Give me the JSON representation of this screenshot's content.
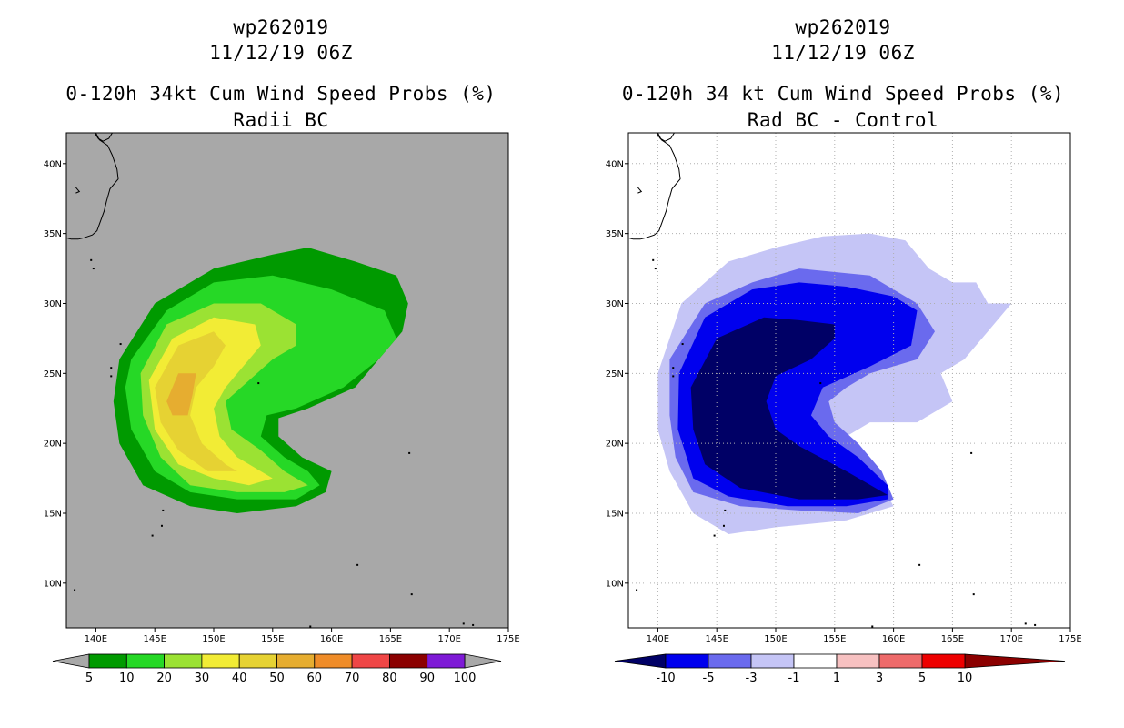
{
  "left_panel": {
    "storm_id": "wp262019",
    "datetime": "11/12/19 06Z",
    "title": "0-120h 34kt Cum Wind Speed Probs (%)",
    "subtitle": "Radii BC",
    "colorbar": {
      "labels": [
        "5",
        "10",
        "20",
        "30",
        "40",
        "50",
        "60",
        "70",
        "80",
        "90",
        "100"
      ],
      "colors": [
        "#009a00",
        "#26d826",
        "#9be233",
        "#f2ec35",
        "#e6d233",
        "#e6ad30",
        "#ef8c28",
        "#ef4646",
        "#8b0000",
        "#7e1ad6"
      ]
    }
  },
  "right_panel": {
    "storm_id": "wp262019",
    "datetime": "11/12/19 06Z",
    "title": "0-120h 34 kt Cum Wind Speed Probs (%)",
    "subtitle": "Rad BC - Control",
    "colorbar": {
      "labels": [
        "-10",
        "-5",
        "-3",
        "-1",
        "1",
        "3",
        "5",
        "10"
      ],
      "colors": [
        "#000066",
        "#0000ee",
        "#6a6aee",
        "#c5c5f6",
        "#ffffff",
        "#f7c1c1",
        "#ee6a6a",
        "#ee0000",
        "#8b0000"
      ]
    }
  },
  "chart_data": [
    {
      "type": "heatmap",
      "title": "0-120h 34kt Cum Wind Speed Probs (%) - Radii BC",
      "x_ticks": [
        "140E",
        "145E",
        "150E",
        "155E",
        "160E",
        "165E",
        "170E",
        "175E"
      ],
      "y_ticks": [
        "10N",
        "15N",
        "20N",
        "25N",
        "30N",
        "35N",
        "40N"
      ],
      "xlim": [
        137.5,
        175
      ],
      "ylim": [
        6.8,
        42.2
      ],
      "levels": [
        5,
        10,
        20,
        30,
        40,
        50,
        60,
        70,
        80,
        90,
        100
      ],
      "contours": [
        {
          "level": 5,
          "color": "#009a00",
          "points": [
            [
              142,
              26
            ],
            [
              145,
              30
            ],
            [
              150,
              32.5
            ],
            [
              155,
              33.5
            ],
            [
              158,
              34
            ],
            [
              162,
              33
            ],
            [
              165.5,
              32
            ],
            [
              166.5,
              30
            ],
            [
              166,
              28
            ],
            [
              164,
              26
            ],
            [
              162,
              24
            ],
            [
              158,
              22.5
            ],
            [
              155.5,
              21.8
            ],
            [
              155.5,
              20.5
            ],
            [
              157.5,
              19
            ],
            [
              160,
              18
            ],
            [
              159.5,
              16.5
            ],
            [
              157,
              15.5
            ],
            [
              152,
              15
            ],
            [
              148,
              15.5
            ],
            [
              144,
              17
            ],
            [
              142,
              20
            ],
            [
              141.5,
              23
            ],
            [
              142,
              26
            ]
          ]
        },
        {
          "level": 10,
          "color": "#26d826",
          "points": [
            [
              143,
              26
            ],
            [
              146,
              29.5
            ],
            [
              150,
              31.5
            ],
            [
              155,
              32
            ],
            [
              160,
              31
            ],
            [
              164.5,
              29.5
            ],
            [
              165.5,
              27.5
            ],
            [
              164,
              26
            ],
            [
              161,
              24
            ],
            [
              157,
              22.5
            ],
            [
              154.5,
              22
            ],
            [
              154,
              20.5
            ],
            [
              156,
              19
            ],
            [
              158,
              18
            ],
            [
              159,
              17
            ],
            [
              157,
              16
            ],
            [
              152,
              16
            ],
            [
              148,
              16.5
            ],
            [
              145,
              18
            ],
            [
              143,
              21
            ],
            [
              142.5,
              24
            ],
            [
              143,
              26
            ]
          ]
        },
        {
          "level": 20,
          "color": "#9be233",
          "points": [
            [
              143.8,
              25
            ],
            [
              146,
              28.5
            ],
            [
              150,
              30
            ],
            [
              154,
              30
            ],
            [
              157,
              28.5
            ],
            [
              157,
              27
            ],
            [
              155,
              26
            ],
            [
              153,
              24.5
            ],
            [
              151,
              23
            ],
            [
              151.5,
              21
            ],
            [
              154,
              19.5
            ],
            [
              156,
              18
            ],
            [
              158,
              17
            ],
            [
              156,
              16.5
            ],
            [
              152,
              16.5
            ],
            [
              148,
              17
            ],
            [
              145.5,
              19
            ],
            [
              144,
              22
            ],
            [
              143.8,
              25
            ]
          ]
        },
        {
          "level": 30,
          "color": "#f2ec35",
          "points": [
            [
              144.5,
              24.5
            ],
            [
              146.5,
              27.5
            ],
            [
              150,
              29
            ],
            [
              153.5,
              28.5
            ],
            [
              154,
              27
            ],
            [
              152.5,
              25.5
            ],
            [
              151,
              24
            ],
            [
              150,
              22.5
            ],
            [
              150.5,
              20.5
            ],
            [
              152,
              19
            ],
            [
              155,
              17.5
            ],
            [
              153,
              17
            ],
            [
              150,
              17.5
            ],
            [
              147,
              18.5
            ],
            [
              145,
              21
            ],
            [
              144.5,
              24.5
            ]
          ]
        },
        {
          "level": 40,
          "color": "#e6d233",
          "points": [
            [
              145,
              24
            ],
            [
              147,
              27
            ],
            [
              150,
              28
            ],
            [
              151,
              27
            ],
            [
              150,
              25.5
            ],
            [
              148.5,
              24
            ],
            [
              148,
              22
            ],
            [
              149,
              20
            ],
            [
              151,
              18.5
            ],
            [
              152,
              18
            ],
            [
              149.5,
              18
            ],
            [
              147,
              19.5
            ],
            [
              145.5,
              21.5
            ],
            [
              145,
              24
            ]
          ]
        },
        {
          "level": 50,
          "color": "#e6ad30",
          "points": [
            [
              146,
              23
            ],
            [
              147,
              25
            ],
            [
              148.5,
              25
            ],
            [
              148.2,
              23.5
            ],
            [
              147.8,
              22
            ],
            [
              146.5,
              22
            ],
            [
              146,
              23
            ]
          ]
        }
      ]
    },
    {
      "type": "heatmap",
      "title": "0-120h 34 kt Cum Wind Speed Probs (%) - Rad BC - Control",
      "x_ticks": [
        "140E",
        "145E",
        "150E",
        "155E",
        "160E",
        "165E",
        "170E",
        "175E"
      ],
      "y_ticks": [
        "10N",
        "15N",
        "20N",
        "25N",
        "30N",
        "35N",
        "40N"
      ],
      "xlim": [
        137.5,
        175
      ],
      "ylim": [
        6.8,
        42.2
      ],
      "levels": [
        -10,
        -5,
        -3,
        -1,
        1,
        3,
        5,
        10
      ],
      "contours": [
        {
          "level": -1,
          "color": "#c5c5f6",
          "points": [
            [
              140,
              25
            ],
            [
              142,
              30
            ],
            [
              146,
              33
            ],
            [
              150,
              34
            ],
            [
              154,
              34.8
            ],
            [
              158,
              35
            ],
            [
              161,
              34.5
            ],
            [
              163,
              32.5
            ],
            [
              165,
              31.5
            ],
            [
              167,
              31.5
            ],
            [
              168,
              30
            ],
            [
              170,
              30
            ],
            [
              168,
              28
            ],
            [
              166,
              26
            ],
            [
              164,
              25
            ],
            [
              165,
              23
            ],
            [
              162,
              21.5
            ],
            [
              158,
              21.5
            ],
            [
              156,
              20.5
            ],
            [
              157,
              19
            ],
            [
              159,
              17
            ],
            [
              160,
              15.5
            ],
            [
              156,
              14.5
            ],
            [
              150,
              14
            ],
            [
              146,
              13.5
            ],
            [
              143,
              15
            ],
            [
              141,
              18
            ],
            [
              140,
              21
            ],
            [
              140,
              25
            ]
          ]
        },
        {
          "level": -3,
          "color": "#6a6aee",
          "points": [
            [
              141,
              26
            ],
            [
              144,
              30
            ],
            [
              148,
              31.5
            ],
            [
              152,
              32.5
            ],
            [
              158,
              32
            ],
            [
              162,
              30
            ],
            [
              163.5,
              28
            ],
            [
              162,
              26
            ],
            [
              158,
              25
            ],
            [
              156,
              24
            ],
            [
              154.5,
              23
            ],
            [
              155,
              21.5
            ],
            [
              157,
              20
            ],
            [
              159,
              18
            ],
            [
              160,
              16
            ],
            [
              157,
              15
            ],
            [
              152,
              15.2
            ],
            [
              147,
              15.5
            ],
            [
              143,
              16.5
            ],
            [
              141.5,
              19
            ],
            [
              141,
              22
            ],
            [
              141,
              26
            ]
          ]
        },
        {
          "level": -5,
          "color": "#0000ee",
          "points": [
            [
              141.8,
              25
            ],
            [
              144,
              29
            ],
            [
              148,
              31
            ],
            [
              152,
              31.5
            ],
            [
              156,
              31.2
            ],
            [
              160,
              30.5
            ],
            [
              162,
              29.5
            ],
            [
              161.5,
              27
            ],
            [
              158,
              25.5
            ],
            [
              154,
              24
            ],
            [
              153,
              22
            ],
            [
              154.5,
              20.5
            ],
            [
              157,
              19
            ],
            [
              159.5,
              17
            ],
            [
              159.5,
              16
            ],
            [
              156,
              15.5
            ],
            [
              151,
              15.5
            ],
            [
              146,
              16.2
            ],
            [
              143,
              17.5
            ],
            [
              141.7,
              21
            ],
            [
              141.8,
              25
            ]
          ]
        },
        {
          "level": -10,
          "color": "#000066",
          "points": [
            [
              142.8,
              24
            ],
            [
              145,
              27.5
            ],
            [
              149,
              29
            ],
            [
              152,
              28.8
            ],
            [
              155,
              28.5
            ],
            [
              155,
              27.5
            ],
            [
              153,
              26
            ],
            [
              150,
              24.8
            ],
            [
              149.2,
              23
            ],
            [
              150,
              21
            ],
            [
              152,
              19.8
            ],
            [
              156,
              18
            ],
            [
              159.5,
              16.3
            ],
            [
              157,
              16
            ],
            [
              152,
              16
            ],
            [
              147,
              16.8
            ],
            [
              144,
              18.5
            ],
            [
              143,
              21
            ],
            [
              142.8,
              24
            ]
          ]
        }
      ]
    }
  ]
}
